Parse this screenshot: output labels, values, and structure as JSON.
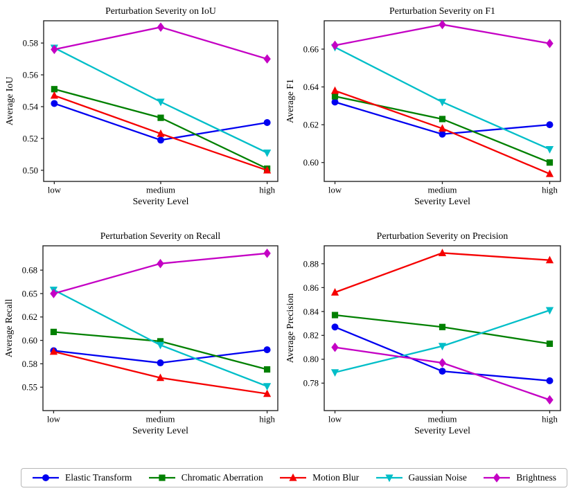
{
  "figure": {
    "xlabel": "Severity Level",
    "categories": [
      "low",
      "medium",
      "high"
    ]
  },
  "series_meta": [
    {
      "name": "Elastic Transform",
      "color": "#0000f0",
      "marker": "circle"
    },
    {
      "name": "Chromatic Aberration",
      "color": "#008000",
      "marker": "square"
    },
    {
      "name": "Motion Blur",
      "color": "#f50000",
      "marker": "triangle-up"
    },
    {
      "name": "Gaussian Noise",
      "color": "#00bec8",
      "marker": "triangle-down"
    },
    {
      "name": "Brightness",
      "color": "#c400c4",
      "marker": "diamond"
    }
  ],
  "chart_data": [
    {
      "type": "line",
      "title": "Perturbation Severity on IoU",
      "xlabel": "Severity Level",
      "ylabel": "Average IoU",
      "categories": [
        "low",
        "medium",
        "high"
      ],
      "ylim": [
        0.493,
        0.594
      ],
      "ytick_values": [
        0.5,
        0.52,
        0.54,
        0.56,
        0.58
      ],
      "ytick_labels": [
        "0.50",
        "0.52",
        "0.54",
        "0.56",
        "0.58"
      ],
      "grid": false,
      "series": [
        {
          "name": "Elastic Transform",
          "values": [
            0.542,
            0.519,
            0.53
          ]
        },
        {
          "name": "Chromatic Aberration",
          "values": [
            0.551,
            0.533,
            0.501
          ]
        },
        {
          "name": "Motion Blur",
          "values": [
            0.547,
            0.523,
            0.5
          ]
        },
        {
          "name": "Gaussian Noise",
          "values": [
            0.577,
            0.543,
            0.511
          ]
        },
        {
          "name": "Brightness",
          "values": [
            0.576,
            0.59,
            0.57
          ]
        }
      ]
    },
    {
      "type": "line",
      "title": "Perturbation Severity on F1",
      "xlabel": "Severity Level",
      "ylabel": "Average F1",
      "categories": [
        "low",
        "medium",
        "high"
      ],
      "ylim": [
        0.59,
        0.675
      ],
      "ytick_values": [
        0.6,
        0.62,
        0.64,
        0.66
      ],
      "ytick_labels": [
        "0.60",
        "0.62",
        "0.64",
        "0.66"
      ],
      "grid": false,
      "series": [
        {
          "name": "Elastic Transform",
          "values": [
            0.632,
            0.615,
            0.62
          ]
        },
        {
          "name": "Chromatic Aberration",
          "values": [
            0.635,
            0.623,
            0.6
          ]
        },
        {
          "name": "Motion Blur",
          "values": [
            0.638,
            0.618,
            0.594
          ]
        },
        {
          "name": "Gaussian Noise",
          "values": [
            0.661,
            0.632,
            0.607
          ]
        },
        {
          "name": "Brightness",
          "values": [
            0.662,
            0.673,
            0.663
          ]
        }
      ]
    },
    {
      "type": "line",
      "title": "Perturbation Severity on Recall",
      "xlabel": "Severity Level",
      "ylabel": "Average Recall",
      "categories": [
        "low",
        "medium",
        "high"
      ],
      "ylim": [
        0.525,
        0.701
      ],
      "ytick_values": [
        0.55,
        0.575,
        0.6,
        0.625,
        0.65,
        0.675
      ],
      "ytick_labels": [
        "0.55",
        "0.58",
        "0.60",
        "0.62",
        "0.65",
        "0.68"
      ],
      "grid": false,
      "series": [
        {
          "name": "Elastic Transform",
          "values": [
            0.589,
            0.576,
            0.59
          ]
        },
        {
          "name": "Chromatic Aberration",
          "values": [
            0.609,
            0.599,
            0.569
          ]
        },
        {
          "name": "Motion Blur",
          "values": [
            0.588,
            0.56,
            0.543
          ]
        },
        {
          "name": "Gaussian Noise",
          "values": [
            0.654,
            0.595,
            0.551
          ]
        },
        {
          "name": "Brightness",
          "values": [
            0.65,
            0.682,
            0.693
          ]
        }
      ]
    },
    {
      "type": "line",
      "title": "Perturbation Severity on Precision",
      "xlabel": "Severity Level",
      "ylabel": "Average Precision",
      "categories": [
        "low",
        "medium",
        "high"
      ],
      "ylim": [
        0.757,
        0.895
      ],
      "ytick_values": [
        0.78,
        0.8,
        0.82,
        0.84,
        0.86,
        0.88
      ],
      "ytick_labels": [
        "0.78",
        "0.80",
        "0.82",
        "0.84",
        "0.86",
        "0.88"
      ],
      "grid": false,
      "series": [
        {
          "name": "Elastic Transform",
          "values": [
            0.827,
            0.79,
            0.782
          ]
        },
        {
          "name": "Chromatic Aberration",
          "values": [
            0.837,
            0.827,
            0.813
          ]
        },
        {
          "name": "Motion Blur",
          "values": [
            0.856,
            0.889,
            0.883
          ]
        },
        {
          "name": "Gaussian Noise",
          "values": [
            0.789,
            0.811,
            0.841
          ]
        },
        {
          "name": "Brightness",
          "values": [
            0.81,
            0.797,
            0.766
          ]
        }
      ]
    }
  ],
  "legend": {
    "items": [
      {
        "label": "Elastic Transform"
      },
      {
        "label": "Chromatic Aberration"
      },
      {
        "label": "Motion Blur"
      },
      {
        "label": "Gaussian Noise"
      },
      {
        "label": "Brightness"
      }
    ]
  }
}
